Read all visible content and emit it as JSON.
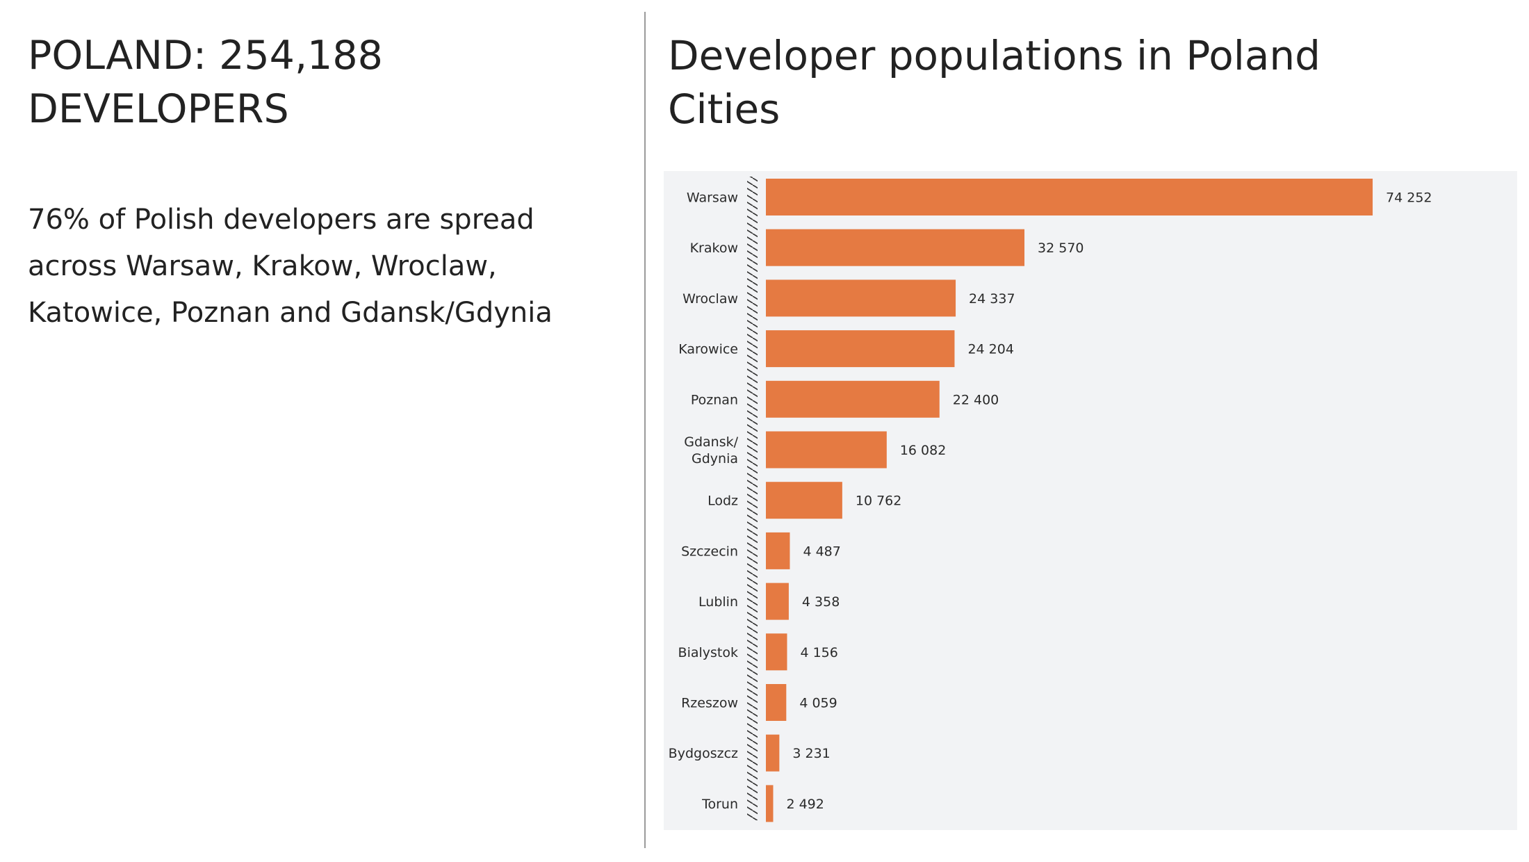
{
  "left_panel": {
    "title_lines": [
      "POLAND: 254,188",
      "DEVELOPERS"
    ],
    "body_lines": [
      "76% of Polish developers are spread",
      "across Warsaw, Krakow, Wroclaw,",
      "Katowice, Poznan and Gdansk/Gdynia"
    ]
  },
  "right_panel": {
    "title_lines": [
      "Developer populations in Poland",
      "Cities"
    ]
  },
  "colors": {
    "bar": "#E57A42",
    "chart_background": "#F2F3F5",
    "text": "#222222",
    "axis_hatch": "#333333"
  },
  "chart_data": {
    "type": "bar",
    "orientation": "horizontal",
    "title": "Developer populations in Poland Cities",
    "xlabel": "",
    "ylabel": "",
    "grid": false,
    "legend": "none",
    "axis_break": true,
    "xlim": [
      1620,
      80000
    ],
    "categories": [
      [
        "Warsaw"
      ],
      [
        "Krakow"
      ],
      [
        "Wroclaw"
      ],
      [
        "Karowice"
      ],
      [
        "Poznan"
      ],
      [
        "Gdansk/",
        "Gdynia"
      ],
      [
        "Lodz"
      ],
      [
        "Szczecin"
      ],
      [
        "Lublin"
      ],
      [
        "Bialystok"
      ],
      [
        "Rzeszow"
      ],
      [
        "Bydgoszcz"
      ],
      [
        "Torun"
      ]
    ],
    "values": [
      74252,
      32570,
      24337,
      24204,
      22400,
      16082,
      10762,
      4487,
      4358,
      4156,
      4059,
      3231,
      2492
    ],
    "value_labels": [
      "74 252",
      "32 570",
      "24 337",
      "24 204",
      "22 400",
      "16 082",
      "10 762",
      "4 487",
      "4 358",
      "4 156",
      "4 059",
      "3 231",
      "2 492"
    ]
  }
}
